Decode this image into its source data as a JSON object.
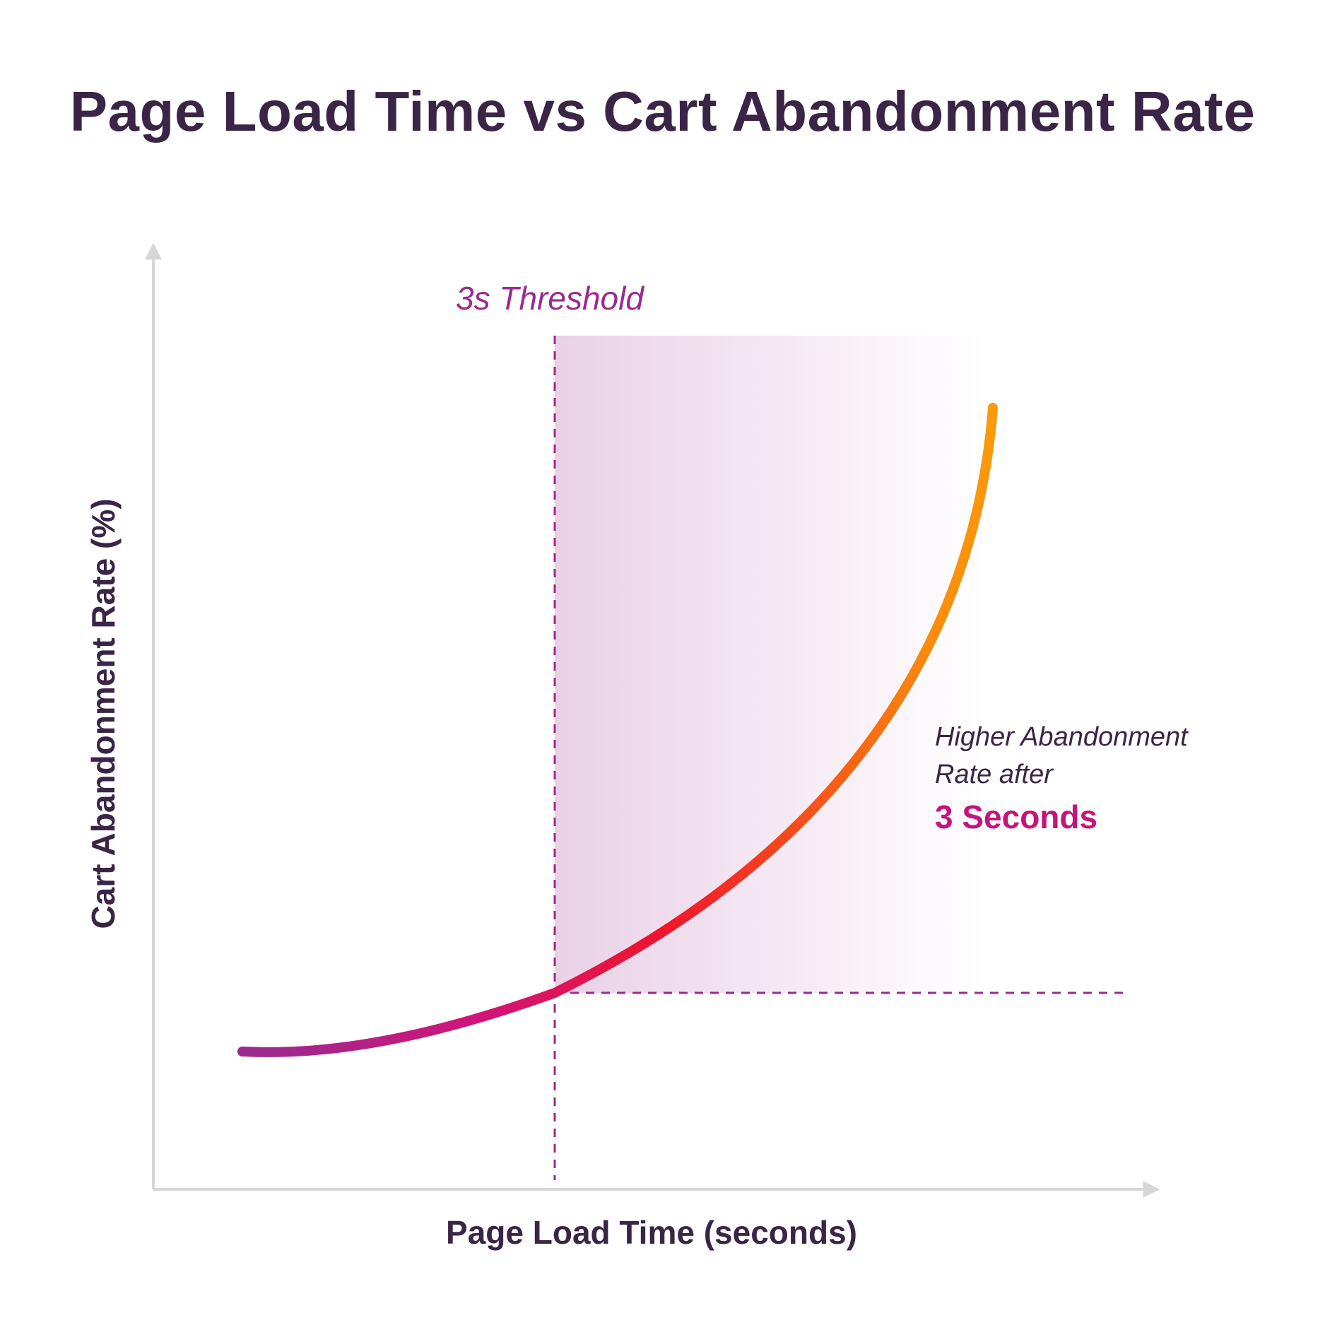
{
  "chart_data": {
    "type": "line",
    "title": "Page Load Time vs Cart Abandonment Rate",
    "xlabel": "Page Load Time (seconds)",
    "ylabel": "Cart Abandonment Rate (%)",
    "show_ticks": false,
    "grid": false,
    "colors": {
      "title": "#3b2546",
      "axis": "#d6d6d6",
      "threshold": "#9b2a8e",
      "highlight": "#c4147d",
      "gradient": [
        "#9b2a8e",
        "#d1147a",
        "#f0142c",
        "#f75518",
        "#fb8c0c",
        "#fb9b0b"
      ]
    },
    "threshold": {
      "x": 3,
      "label": "3s Threshold"
    },
    "annotation": {
      "line1": "Higher Abandonment",
      "line2": "Rate after",
      "emphasis": "3 Seconds"
    }
  }
}
